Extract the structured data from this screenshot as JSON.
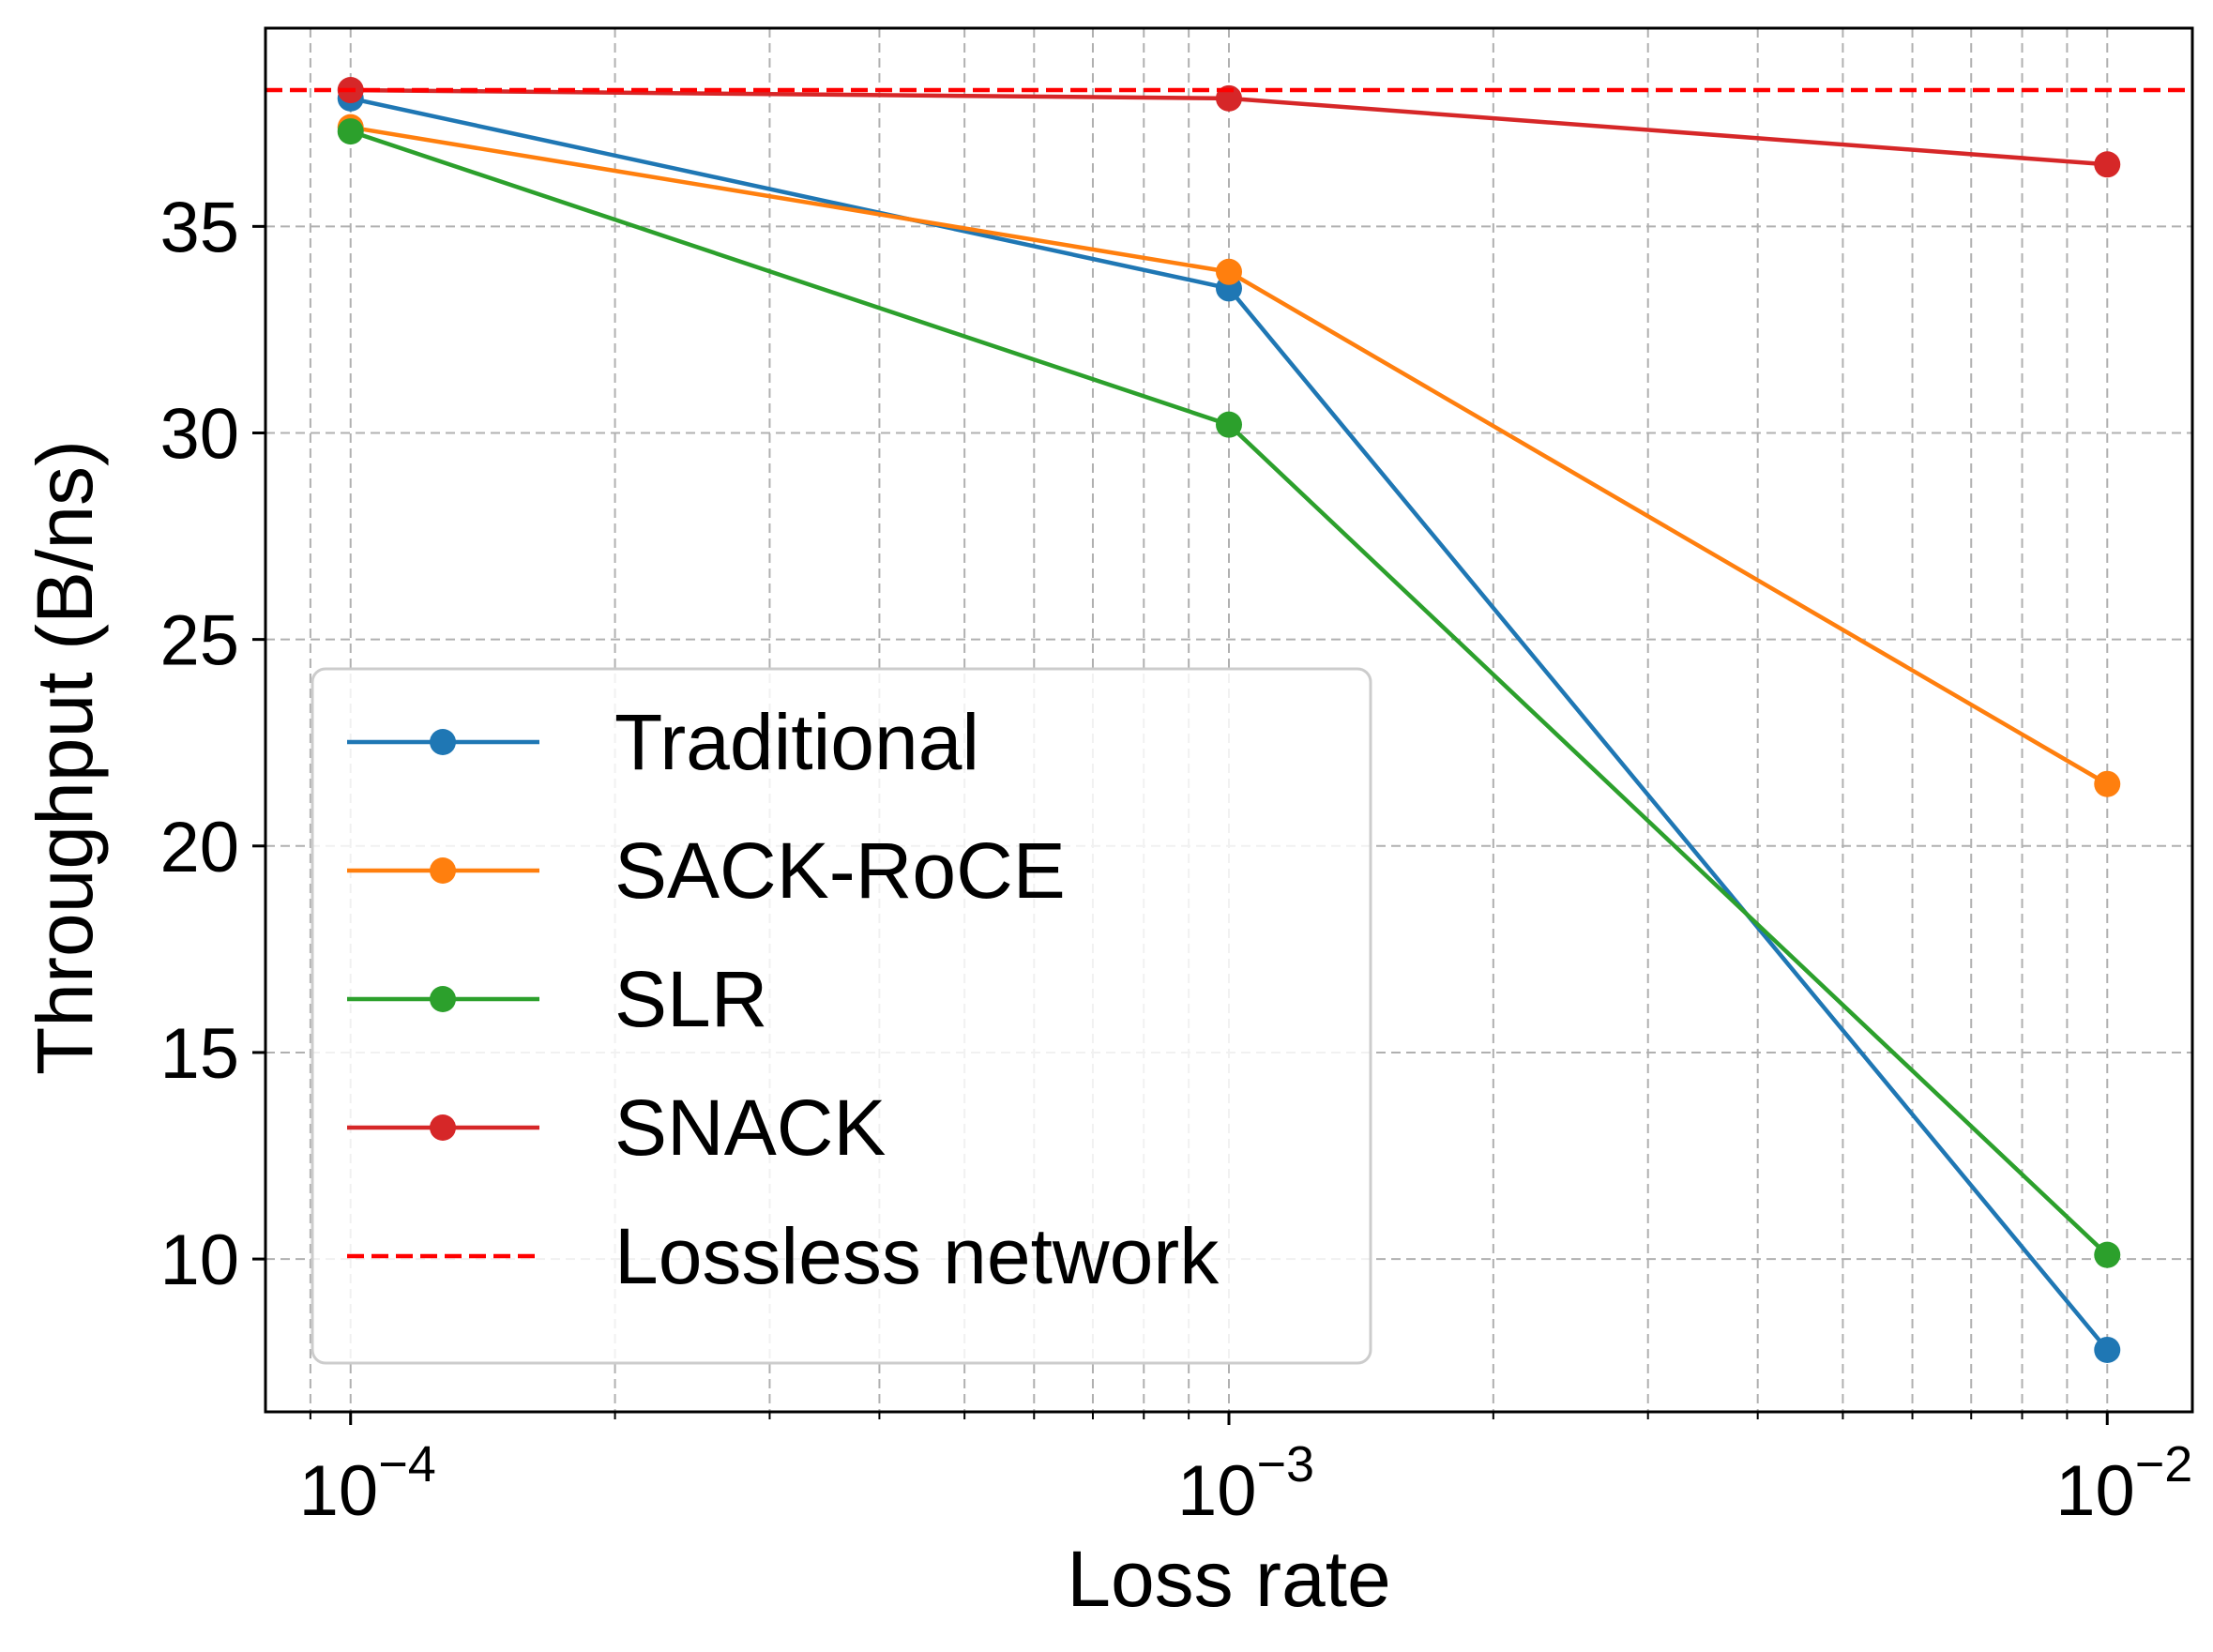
{
  "chart_data": {
    "type": "line",
    "title": "",
    "xlabel": "Loss rate",
    "ylabel": "Throughput (B/ns)",
    "xscale": "log",
    "x": [
      0.0001,
      0.001,
      0.01
    ],
    "xlim": [
      8e-05,
      0.0125
    ],
    "ylim": [
      6.3,
      39.8
    ],
    "xticks": [
      {
        "value": 0.0001,
        "base": "10",
        "exp": "−4"
      },
      {
        "value": 0.001,
        "base": "10",
        "exp": "−3"
      },
      {
        "value": 0.01,
        "base": "10",
        "exp": "−2"
      }
    ],
    "yticks": [
      10,
      15,
      20,
      25,
      30,
      35
    ],
    "grid": true,
    "legend_position": "lower-left",
    "series": [
      {
        "name": "Traditional",
        "color": "#1f77b4",
        "style": "solid-marker",
        "values": [
          38.1,
          33.5,
          7.8
        ]
      },
      {
        "name": "SACK-RoCE",
        "color": "#ff7f0e",
        "style": "solid-marker",
        "values": [
          37.4,
          33.9,
          21.5
        ]
      },
      {
        "name": "SLR",
        "color": "#2ca02c",
        "style": "solid-marker",
        "values": [
          37.3,
          30.2,
          10.1
        ]
      },
      {
        "name": "SNACK",
        "color": "#d62728",
        "style": "solid-marker",
        "values": [
          38.3,
          38.1,
          36.5
        ]
      },
      {
        "name": "Lossless network",
        "color": "#ff0000",
        "style": "dashed",
        "constant": 38.3
      }
    ]
  }
}
